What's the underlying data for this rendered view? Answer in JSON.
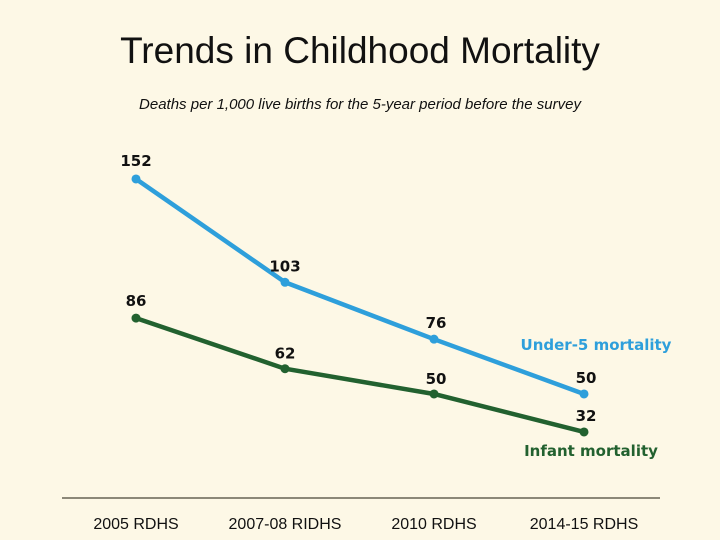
{
  "chart_data": {
    "type": "line",
    "title": "Trends in Childhood Mortality",
    "subtitle": "Deaths per 1,000 live births for the 5-year period before the survey",
    "categories": [
      "2005 RDHS",
      "2007-08 RIDHS",
      "2010 RDHS",
      "2014-15 RDHS"
    ],
    "series": [
      {
        "name": "Under-5 mortality",
        "values": [
          152,
          103,
          76,
          50
        ],
        "color": "#2e9fdb"
      },
      {
        "name": "Infant mortality",
        "values": [
          86,
          62,
          50,
          32
        ],
        "color": "#22612f"
      }
    ],
    "ylim": [
      0,
      160
    ],
    "grid": false,
    "data_labels": true,
    "legend": "inline labels"
  }
}
